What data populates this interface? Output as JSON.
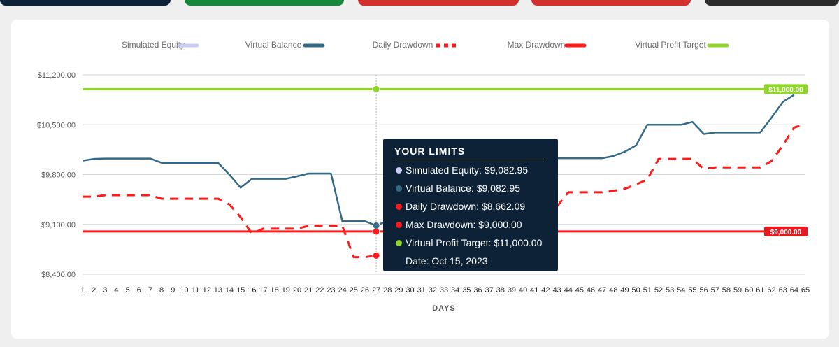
{
  "top_buttons": [
    {
      "color": "#0d2236"
    },
    {
      "color": "#16883a"
    },
    {
      "color": "#d32f2f"
    },
    {
      "color": "#d32f2f"
    },
    {
      "color": "#2b2b2b"
    }
  ],
  "chart_data": {
    "type": "line",
    "title": "",
    "xlabel": "DAYS",
    "ylabel": "",
    "x": [
      1,
      2,
      3,
      4,
      5,
      6,
      7,
      8,
      9,
      10,
      11,
      12,
      13,
      14,
      15,
      16,
      17,
      18,
      19,
      20,
      21,
      22,
      23,
      24,
      25,
      26,
      27,
      28,
      29,
      30,
      31,
      32,
      33,
      34,
      35,
      36,
      37,
      38,
      39,
      40,
      41,
      42,
      43,
      44,
      45,
      46,
      47,
      48,
      49,
      50,
      51,
      52,
      53,
      54,
      55,
      56,
      57,
      58,
      59,
      60,
      61,
      62,
      63,
      64,
      65
    ],
    "ylim": [
      8400,
      11200
    ],
    "yticks": [
      8400,
      9100,
      9800,
      10500,
      11200
    ],
    "ytick_labels": [
      "$8,400.00",
      "$9,100.00",
      "$9,800.00",
      "$10,500.00",
      "$11,200.00"
    ],
    "legend_placement": "top",
    "grid": "horizontal",
    "series": [
      {
        "name": "Simulated Equity",
        "color": "#c9ccf4",
        "style": "solid",
        "values": [
          null,
          null,
          null,
          null,
          null,
          null,
          null,
          null,
          null,
          null,
          null,
          null,
          null,
          null,
          null,
          null,
          null,
          null,
          null,
          null,
          null,
          null,
          null,
          null,
          null,
          null,
          null,
          null,
          null,
          null,
          null,
          null,
          null,
          null,
          null,
          null,
          null,
          null,
          null,
          null,
          null,
          null,
          null,
          null,
          null,
          null,
          null,
          null,
          null,
          null,
          null,
          null,
          null,
          null,
          null,
          null,
          null,
          null,
          null,
          null,
          null,
          null,
          null,
          null,
          null
        ]
      },
      {
        "name": "Virtual Balance",
        "color": "#336a87",
        "style": "solid",
        "values": [
          9995,
          10020,
          10025,
          10025,
          10025,
          10025,
          10025,
          9965,
          9965,
          9965,
          9965,
          9965,
          9965,
          9800,
          9615,
          9740,
          9740,
          9740,
          9740,
          9775,
          9815,
          9815,
          9815,
          9145,
          9145,
          9145,
          9082.95,
          9150,
          null,
          null,
          null,
          null,
          null,
          null,
          null,
          null,
          null,
          null,
          null,
          null,
          null,
          null,
          10030,
          10030,
          10030,
          10030,
          10030,
          10060,
          10120,
          10210,
          10500,
          10500,
          10500,
          10500,
          10540,
          10370,
          10390,
          10390,
          10390,
          10390,
          10390,
          10600,
          10820,
          10920,
          null
        ]
      },
      {
        "name": "Daily Drawdown",
        "color": "#ff1a1a",
        "style": "dashed",
        "values": [
          9490,
          9490,
          9510,
          9510,
          9510,
          9510,
          9510,
          9460,
          9460,
          9460,
          9460,
          9460,
          9460,
          9380,
          9200,
          8970,
          9040,
          9040,
          9040,
          9040,
          9080,
          9080,
          9080,
          9080,
          8640,
          8640,
          8662.09,
          null,
          null,
          null,
          null,
          null,
          null,
          null,
          null,
          null,
          null,
          null,
          null,
          null,
          null,
          null,
          9350,
          9550,
          9550,
          9550,
          9550,
          9570,
          9600,
          9660,
          9730,
          10020,
          10020,
          10020,
          10020,
          9880,
          9900,
          9900,
          9900,
          9900,
          9900,
          9990,
          10210,
          10460,
          10510
        ]
      },
      {
        "name": "Max Drawdown",
        "color": "#ff1a1a",
        "style": "solid",
        "values": [
          9000,
          9000,
          9000,
          9000,
          9000,
          9000,
          9000,
          9000,
          9000,
          9000,
          9000,
          9000,
          9000,
          9000,
          9000,
          9000,
          9000,
          9000,
          9000,
          9000,
          9000,
          9000,
          9000,
          9000,
          9000,
          9000,
          9000,
          9000,
          9000,
          9000,
          9000,
          9000,
          9000,
          9000,
          9000,
          9000,
          9000,
          9000,
          9000,
          9000,
          9000,
          9000,
          9000,
          9000,
          9000,
          9000,
          9000,
          9000,
          9000,
          9000,
          9000,
          9000,
          9000,
          9000,
          9000,
          9000,
          9000,
          9000,
          9000,
          9000,
          9000,
          9000,
          9000,
          9000,
          9000
        ]
      },
      {
        "name": "Virtual Profit Target",
        "color": "#8fd629",
        "style": "solid",
        "values": [
          11000,
          11000,
          11000,
          11000,
          11000,
          11000,
          11000,
          11000,
          11000,
          11000,
          11000,
          11000,
          11000,
          11000,
          11000,
          11000,
          11000,
          11000,
          11000,
          11000,
          11000,
          11000,
          11000,
          11000,
          11000,
          11000,
          11000,
          11000,
          11000,
          11000,
          11000,
          11000,
          11000,
          11000,
          11000,
          11000,
          11000,
          11000,
          11000,
          11000,
          11000,
          11000,
          11000,
          11000,
          11000,
          11000,
          11000,
          11000,
          11000,
          11000,
          11000,
          11000,
          11000,
          11000,
          11000,
          11000,
          11000,
          11000,
          11000,
          11000,
          11000,
          11000,
          11000,
          11000,
          11000
        ]
      }
    ],
    "end_labels": [
      {
        "text": "$11,000.00",
        "value": 11000,
        "color": "#8fd629"
      },
      {
        "text": "$9,000.00",
        "value": 9000,
        "color": "#e5191f"
      }
    ],
    "hover_day": 27
  },
  "tooltip": {
    "title": "YOUR LIMITS",
    "rows": [
      {
        "color": "#c9ccf4",
        "text": "Simulated Equity: $9,082.95"
      },
      {
        "color": "#336a87",
        "text": "Virtual Balance: $9,082.95"
      },
      {
        "color": "#ff1a1a",
        "text": "Daily Drawdown: $8,662.09"
      },
      {
        "color": "#ff1a1a",
        "text": "Max Drawdown: $9,000.00"
      },
      {
        "color": "#8fd629",
        "text": "Virtual Profit Target: $11,000.00"
      }
    ],
    "date": "Date: Oct 15, 2023"
  }
}
